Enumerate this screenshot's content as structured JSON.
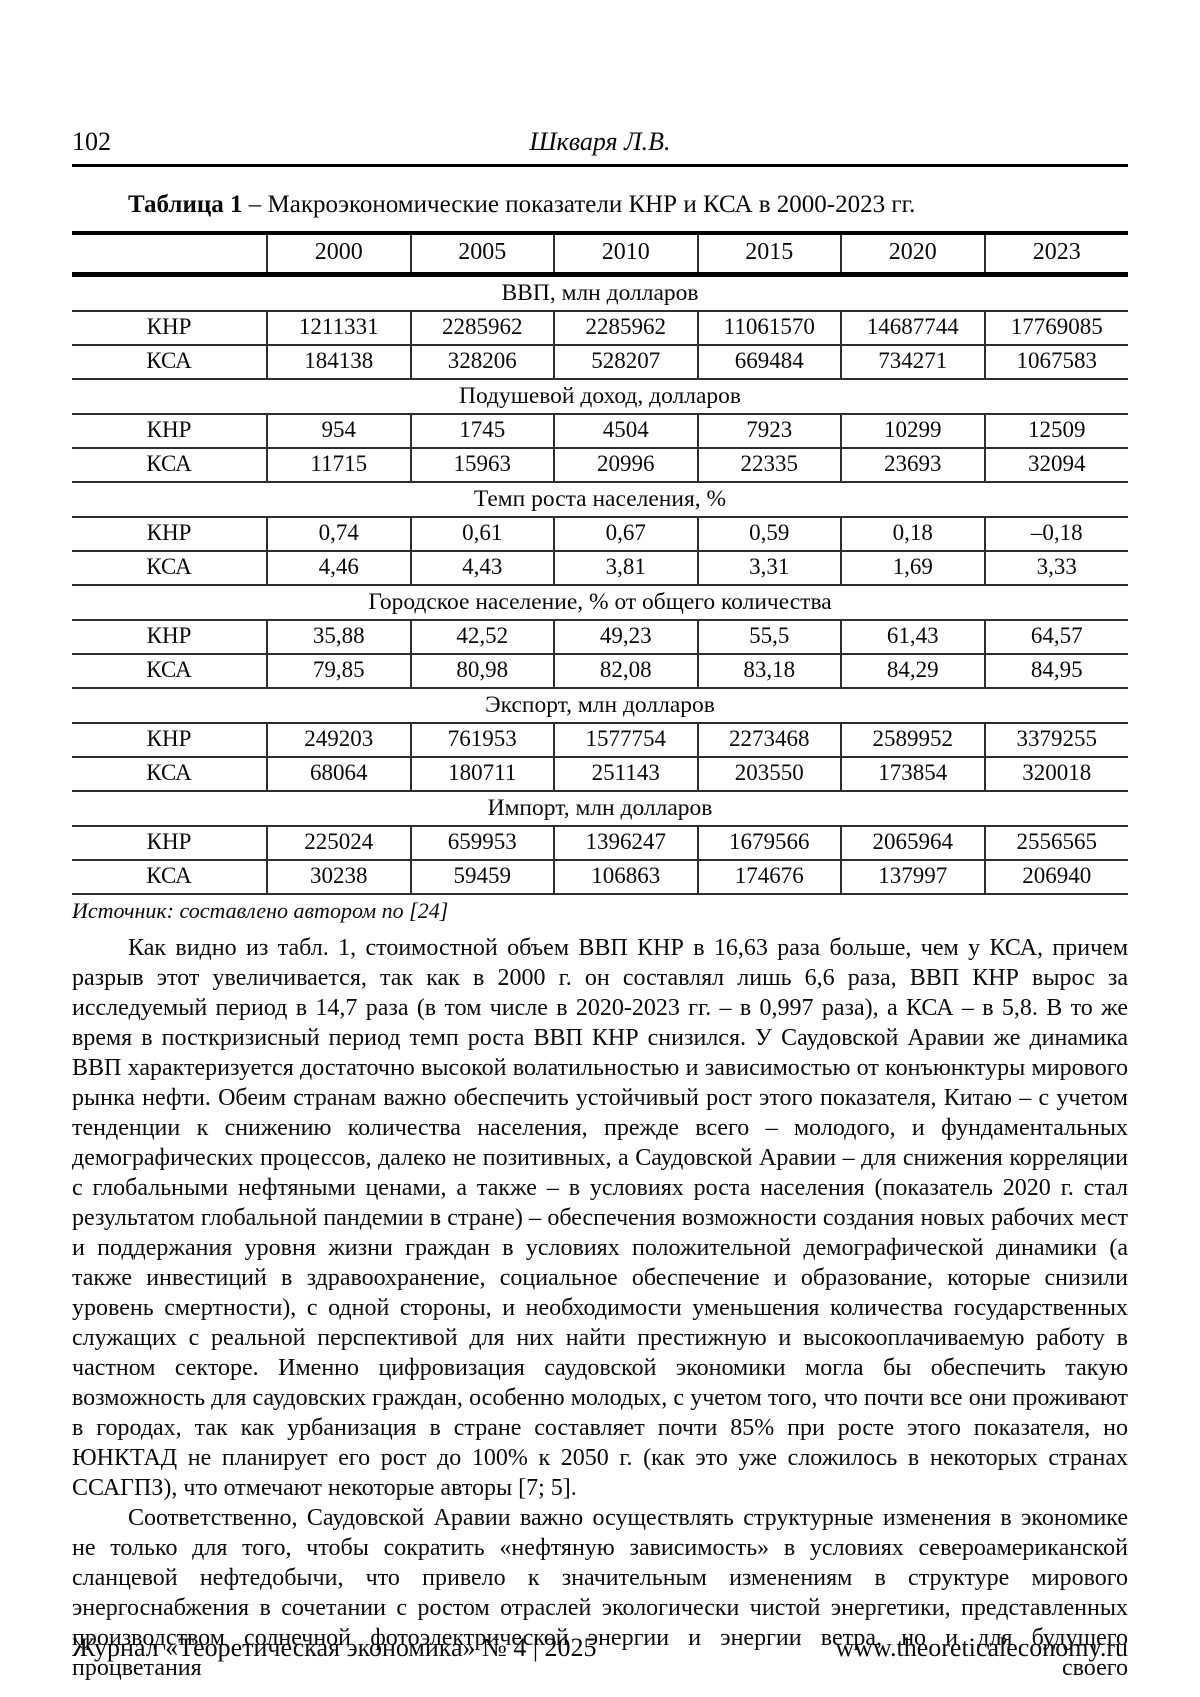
{
  "header": {
    "page_number": "102",
    "running_head": "Шкваря Л.В."
  },
  "table": {
    "caption_label": "Таблица 1",
    "caption_text": " – Макроэкономические показатели КНР и КСА в 2000-2023 гг.",
    "years": [
      "2000",
      "2005",
      "2010",
      "2015",
      "2020",
      "2023"
    ],
    "sections": [
      {
        "title": "ВВП, млн долларов",
        "rows": [
          {
            "label": "КНР",
            "values": [
              "1211331",
              "2285962",
              "2285962",
              "11061570",
              "14687744",
              "17769085"
            ]
          },
          {
            "label": "КСА",
            "values": [
              "184138",
              "328206",
              "528207",
              "669484",
              "734271",
              "1067583"
            ]
          }
        ]
      },
      {
        "title": "Подушевой доход, долларов",
        "rows": [
          {
            "label": "КНР",
            "values": [
              "954",
              "1745",
              "4504",
              "7923",
              "10299",
              "12509"
            ]
          },
          {
            "label": "КСА",
            "values": [
              "11715",
              "15963",
              "20996",
              "22335",
              "23693",
              "32094"
            ]
          }
        ]
      },
      {
        "title": "Темп роста населения, %",
        "rows": [
          {
            "label": "КНР",
            "values": [
              "0,74",
              "0,61",
              "0,67",
              "0,59",
              "0,18",
              "–0,18"
            ]
          },
          {
            "label": "КСА",
            "values": [
              "4,46",
              "4,43",
              "3,81",
              "3,31",
              "1,69",
              "3,33"
            ]
          }
        ]
      },
      {
        "title": "Городское население, % от общего количества",
        "rows": [
          {
            "label": "КНР",
            "values": [
              "35,88",
              "42,52",
              "49,23",
              "55,5",
              "61,43",
              "64,57"
            ]
          },
          {
            "label": "КСА",
            "values": [
              "79,85",
              "80,98",
              "82,08",
              "83,18",
              "84,29",
              "84,95"
            ]
          }
        ]
      },
      {
        "title": "Экспорт, млн долларов",
        "rows": [
          {
            "label": "КНР",
            "values": [
              "249203",
              "761953",
              "1577754",
              "2273468",
              "2589952",
              "3379255"
            ]
          },
          {
            "label": "КСА",
            "values": [
              "68064",
              "180711",
              "251143",
              "203550",
              "173854",
              "320018"
            ]
          }
        ]
      },
      {
        "title": "Импорт, млн долларов",
        "rows": [
          {
            "label": "КНР",
            "values": [
              "225024",
              "659953",
              "1396247",
              "1679566",
              "2065964",
              "2556565"
            ]
          },
          {
            "label": "КСА",
            "values": [
              "30238",
              "59459",
              "106863",
              "174676",
              "137997",
              "206940"
            ]
          }
        ]
      }
    ],
    "source": "Источник: составлено автором по [24]"
  },
  "body": {
    "paragraph_1": "Как видно из табл. 1, стоимостной объем ВВП КНР в 16,63 раза больше, чем у КСА, причем разрыв этот увеличивается, так как в 2000 г. он составлял лишь 6,6 раза, ВВП КНР вырос за исследуемый период в 14,7 раза (в том числе в 2020-2023 гг. – в 0,997 раза), а КСА – в 5,8. В то же время в посткризисный период темп роста ВВП КНР снизился. У Саудовской Аравии же динамика ВВП характеризуется достаточно высокой волатильностью и зависимостью от конъюнктуры мирового рынка нефти. Обеим странам важно обеспечить устойчивый рост этого показателя, Китаю – с учетом тенденции к снижению количества населения, прежде всего – молодого, и фундаментальных демографических процессов, далеко не позитивных, а Саудовской Аравии – для снижения корреляции с глобальными нефтяными ценами, а также – в условиях роста населения (показатель 2020 г. стал результатом глобальной пандемии в стране) – обеспечения возможности создания новых рабочих мест и поддержания уровня жизни граждан в условиях положительной демографической динамики (а также инвестиций в здравоохранение, социальное обеспечение и образование, которые снизили уровень смертности), с одной стороны, и необходимости уменьшения количества государственных служащих с реальной перспективой для них найти престижную и высокооплачиваемую работу в частном секторе. Именно цифровизация саудовской экономики могла бы обеспечить такую возможность для саудовских граждан, особенно молодых, с учетом того, что почти все они проживают в городах, так как урбанизация в стране составляет почти 85% при росте этого показателя, но ЮНКТАД не планирует его рост до 100% к 2050 г. (как это уже сложилось в некоторых странах ССАГПЗ), что отмечают некоторые авторы [7; 5].",
    "paragraph_2": "Соответственно, Саудовской Аравии важно осуществлять структурные изменения в экономике не только для того, чтобы сократить «нефтяную зависимость» в условиях североамериканской сланцевой нефтедобычи, что привело к значительным изменениям в структуре мирового энергоснабжения в сочетании с ростом отраслей экологически чистой энергетики, представленных производством солнечной фотоэлектрической энергии и энергии ветра, но и для будущего процветания своего"
  },
  "footer": {
    "journal": "Журнал «Теоретическая экономика» № 4 | 2025",
    "website": "www.theoreticaleconomy.ru"
  }
}
